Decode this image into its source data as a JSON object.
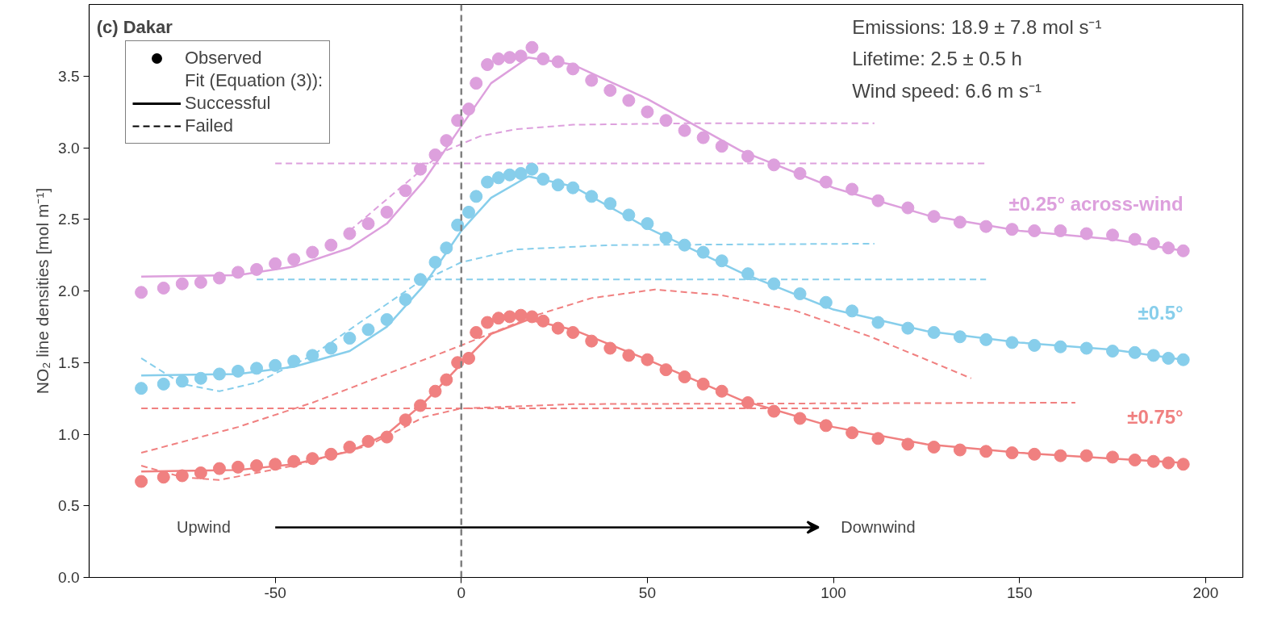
{
  "chart_data": {
    "type": "scatter",
    "title": "(c) Dakar",
    "ylabel": "NO₂ line densities [mol m⁻¹]",
    "xlim": [
      -100,
      210
    ],
    "xticks": [
      -50,
      0,
      50,
      100,
      150,
      200
    ],
    "ylim": [
      0,
      4.0
    ],
    "yticks": [
      {
        "value": 0,
        "label": "0.0"
      },
      0.5,
      {
        "value": 1,
        "label": "1.0"
      },
      1.5,
      {
        "value": 2,
        "label": "2.0"
      },
      2.5,
      {
        "value": 3,
        "label": "3.0"
      },
      3.5
    ],
    "grid": false,
    "x": [
      -86,
      -80,
      -75,
      -70,
      -65,
      -60,
      -55,
      -50,
      -45,
      -40,
      -35,
      -30,
      -25,
      -20,
      -15,
      -11,
      -7,
      -4,
      -1,
      2,
      4,
      7,
      10,
      13,
      16,
      19,
      22,
      26,
      30,
      35,
      40,
      45,
      50,
      55,
      60,
      65,
      70,
      77,
      84,
      91,
      98,
      105,
      112,
      120,
      127,
      134,
      141,
      148,
      154,
      161,
      168,
      175,
      181,
      186,
      190,
      194
    ],
    "ref_lines": [
      {
        "axis": "x",
        "value": 0,
        "label": null,
        "color": "#808080",
        "line_style": "dashed"
      }
    ],
    "annotations": [
      "Observed",
      "Fit (Equation (3)):",
      "Successful",
      "Failed",
      "Emissions: 18.9 ± 7.8 mol s⁻¹",
      "Lifetime: 2.5 ± 0.5 h",
      "Wind speed: 6.6 m s⁻¹",
      "Upwind",
      "Downwind"
    ],
    "series": [
      {
        "name": "±0.25° across-wind",
        "marker": "circle",
        "color": "#dda0dd",
        "values": [
          1.99,
          2.02,
          2.05,
          2.06,
          2.09,
          2.13,
          2.15,
          2.19,
          2.22,
          2.27,
          2.32,
          2.4,
          2.47,
          2.55,
          2.7,
          2.85,
          2.95,
          3.05,
          3.19,
          3.27,
          3.45,
          3.58,
          3.62,
          3.63,
          3.64,
          3.7,
          3.62,
          3.6,
          3.55,
          3.47,
          3.4,
          3.33,
          3.25,
          3.19,
          3.12,
          3.07,
          3.01,
          2.94,
          2.88,
          2.82,
          2.76,
          2.71,
          2.63,
          2.58,
          2.52,
          2.48,
          2.45,
          2.43,
          2.42,
          2.42,
          2.4,
          2.39,
          2.36,
          2.33,
          2.3,
          2.28
        ]
      },
      {
        "name": "±0.5°",
        "marker": "circle",
        "color": "#87ceeb",
        "values": [
          1.32,
          1.35,
          1.37,
          1.39,
          1.42,
          1.44,
          1.46,
          1.48,
          1.51,
          1.55,
          1.6,
          1.67,
          1.73,
          1.8,
          1.94,
          2.08,
          2.2,
          2.3,
          2.46,
          2.55,
          2.66,
          2.76,
          2.79,
          2.81,
          2.82,
          2.85,
          2.78,
          2.74,
          2.72,
          2.66,
          2.61,
          2.53,
          2.47,
          2.37,
          2.32,
          2.27,
          2.21,
          2.12,
          2.05,
          1.98,
          1.92,
          1.86,
          1.78,
          1.74,
          1.71,
          1.68,
          1.66,
          1.64,
          1.62,
          1.61,
          1.6,
          1.58,
          1.57,
          1.55,
          1.53,
          1.52
        ]
      },
      {
        "name": "±0.75°",
        "marker": "circle",
        "color": "#f08080",
        "values": [
          0.67,
          0.7,
          0.71,
          0.73,
          0.76,
          0.77,
          0.78,
          0.79,
          0.81,
          0.83,
          0.86,
          0.91,
          0.95,
          0.98,
          1.1,
          1.2,
          1.3,
          1.38,
          1.5,
          1.53,
          1.71,
          1.78,
          1.81,
          1.82,
          1.83,
          1.82,
          1.79,
          1.74,
          1.71,
          1.65,
          1.6,
          1.55,
          1.52,
          1.45,
          1.4,
          1.35,
          1.3,
          1.22,
          1.16,
          1.11,
          1.06,
          1.01,
          0.97,
          0.93,
          0.91,
          0.89,
          0.88,
          0.87,
          0.86,
          0.85,
          0.85,
          0.84,
          0.82,
          0.81,
          0.8,
          0.79
        ]
      },
      {
        "type": "line",
        "line_style": "solid",
        "color": "#dda0dd",
        "x": [
          -86,
          -60,
          -45,
          -30,
          -20,
          -10,
          0,
          8,
          18,
          30,
          50,
          75,
          100,
          125,
          150,
          175,
          194
        ],
        "values": [
          2.1,
          2.11,
          2.17,
          2.3,
          2.47,
          2.77,
          3.15,
          3.45,
          3.63,
          3.58,
          3.34,
          2.98,
          2.72,
          2.53,
          2.42,
          2.36,
          2.28
        ]
      },
      {
        "type": "line",
        "line_style": "solid",
        "color": "#87ceeb",
        "x": [
          -86,
          -60,
          -45,
          -30,
          -20,
          -10,
          0,
          8,
          18,
          30,
          50,
          75,
          100,
          125,
          150,
          175,
          194
        ],
        "values": [
          1.41,
          1.42,
          1.47,
          1.58,
          1.75,
          2.04,
          2.42,
          2.65,
          2.8,
          2.73,
          2.44,
          2.13,
          1.87,
          1.72,
          1.64,
          1.59,
          1.52
        ]
      },
      {
        "type": "line",
        "line_style": "solid",
        "color": "#f08080",
        "x": [
          -86,
          -60,
          -45,
          -30,
          -20,
          -10,
          0,
          8,
          18,
          30,
          50,
          75,
          100,
          125,
          150,
          175,
          194
        ],
        "values": [
          0.74,
          0.75,
          0.79,
          0.88,
          1.0,
          1.22,
          1.49,
          1.7,
          1.8,
          1.73,
          1.52,
          1.24,
          1.05,
          0.93,
          0.87,
          0.83,
          0.8
        ]
      },
      {
        "type": "line",
        "line_style": "dashed",
        "color": "#dda0dd",
        "x": [
          -50,
          141
        ],
        "values": [
          2.89,
          2.89
        ]
      },
      {
        "type": "line",
        "line_style": "dashed",
        "color": "#dda0dd",
        "x": [
          -30,
          -15,
          -5,
          5,
          15,
          30,
          60,
          111
        ],
        "values": [
          2.42,
          2.75,
          2.97,
          3.08,
          3.13,
          3.16,
          3.17,
          3.17
        ]
      },
      {
        "type": "line",
        "line_style": "dashed",
        "color": "#87ceeb",
        "x": [
          -55,
          141
        ],
        "values": [
          2.08,
          2.08
        ]
      },
      {
        "type": "line",
        "line_style": "dashed",
        "color": "#87ceeb",
        "x": [
          -86,
          -75,
          -65,
          -55,
          -40,
          -25,
          -12,
          0,
          15,
          40,
          111
        ],
        "values": [
          1.53,
          1.35,
          1.3,
          1.36,
          1.55,
          1.82,
          2.05,
          2.2,
          2.29,
          2.32,
          2.33
        ]
      },
      {
        "type": "line",
        "line_style": "dashed",
        "color": "#f08080",
        "x": [
          -86,
          -60,
          -40,
          -20,
          0,
          20,
          35,
          52,
          70,
          90,
          110,
          125,
          137
        ],
        "values": [
          0.87,
          1.05,
          1.22,
          1.42,
          1.62,
          1.83,
          1.95,
          2.01,
          1.97,
          1.86,
          1.68,
          1.52,
          1.39
        ]
      },
      {
        "type": "line",
        "line_style": "dashed",
        "color": "#f08080",
        "x": [
          -86,
          108
        ],
        "values": [
          1.18,
          1.18
        ]
      },
      {
        "type": "line",
        "line_style": "dashed",
        "color": "#f08080",
        "x": [
          -86,
          -75,
          -65,
          -45,
          -25,
          -10,
          0,
          30,
          165
        ],
        "values": [
          0.78,
          0.7,
          0.68,
          0.78,
          0.92,
          1.12,
          1.18,
          1.21,
          1.22
        ]
      }
    ]
  }
}
